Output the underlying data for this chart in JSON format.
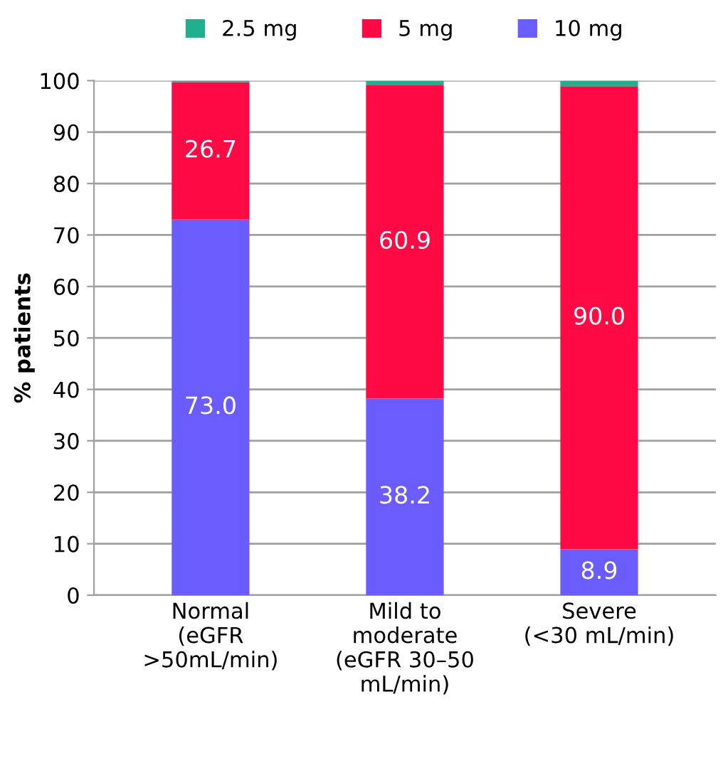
{
  "chart_data": {
    "type": "bar",
    "stacked": true,
    "ylabel": "% patients",
    "categories": [
      "Normal\n(eGFR\n>50mL/min)",
      "Mild to\nmoderate\n(eGFR 30–50\nmL/min)",
      "Severe\n(<30 mL/min)"
    ],
    "series": [
      {
        "name": "10 mg",
        "color": "#6a5cff",
        "values": [
          73.0,
          38.2,
          8.9
        ],
        "value_labels": [
          "73.0",
          "38.2",
          "8.9"
        ]
      },
      {
        "name": "5 mg",
        "color": "#ff0a44",
        "values": [
          26.7,
          60.9,
          90.0
        ],
        "value_labels": [
          "26.7",
          "60.9",
          "90.0"
        ]
      },
      {
        "name": "2.5 mg",
        "color": "#20b090",
        "values": [
          0.3,
          0.9,
          1.1
        ]
      }
    ],
    "ylim": [
      0,
      100
    ],
    "yticks": [
      0,
      10,
      20,
      30,
      40,
      50,
      60,
      70,
      80,
      90,
      100
    ],
    "grid": "y",
    "legend": "top"
  }
}
